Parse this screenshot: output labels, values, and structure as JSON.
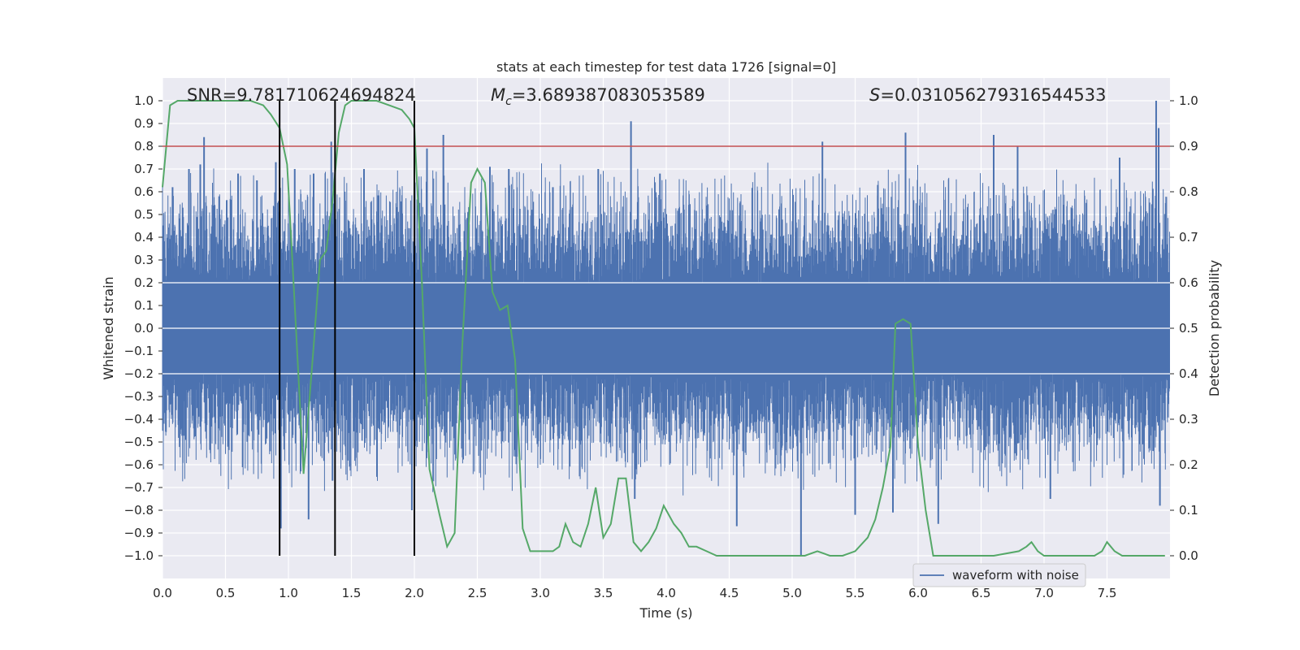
{
  "chart_data": {
    "type": "line",
    "title": "stats at each timestep for test data 1726 [signal=0]",
    "xlabel": "Time (s)",
    "ylabel": "Whitened strain",
    "y2label": "Detection probability",
    "xlim": [
      0.0,
      8.0
    ],
    "ylim": [
      -1.1,
      1.1
    ],
    "y2lim": [
      -0.05,
      1.05
    ],
    "grid": true,
    "background": "#eaeaf2",
    "x_ticks": [
      "0.0",
      "0.5",
      "1.0",
      "1.5",
      "2.0",
      "2.5",
      "3.0",
      "3.5",
      "4.0",
      "4.5",
      "5.0",
      "5.5",
      "6.0",
      "6.5",
      "7.0",
      "7.5"
    ],
    "y_ticks": [
      "1.0",
      "0.9",
      "0.8",
      "0.7",
      "0.6",
      "0.5",
      "0.4",
      "0.3",
      "0.2",
      "0.1",
      "0.0",
      "−0.1",
      "−0.2",
      "−0.3",
      "−0.4",
      "−0.5",
      "−0.6",
      "−0.7",
      "−0.8",
      "−0.9",
      "−1.0"
    ],
    "y2_ticks": [
      "1.0",
      "0.9",
      "0.8",
      "0.7",
      "0.6",
      "0.5",
      "0.4",
      "0.3",
      "0.2",
      "0.1",
      "0.0"
    ],
    "annotations": {
      "snr": "SNR=9.781710624694824",
      "mc_symbol": "M",
      "mc_sub": "c",
      "mc_value": "=3.689387083053589",
      "s_symbol": "S",
      "s_value": "=0.031056279316544533"
    },
    "threshold": {
      "value": 0.9,
      "axis": "right",
      "color": "#c44e52"
    },
    "vertical_lines": {
      "x": [
        0.93,
        1.37,
        2.0
      ],
      "y_from": -1.0,
      "y_to": 1.0,
      "color": "#000000"
    },
    "legend": {
      "position": "lower-right",
      "entries": [
        "waveform with noise"
      ]
    },
    "series": [
      {
        "name": "waveform with noise",
        "axis": "left",
        "color": "#4c72b0",
        "kind": "noise",
        "core_amplitude": 0.2,
        "typical_peak": 0.45,
        "spikes": [
          [
            0.08,
            0.62
          ],
          [
            0.21,
            0.7
          ],
          [
            0.3,
            0.72
          ],
          [
            0.33,
            0.84
          ],
          [
            0.45,
            0.58
          ],
          [
            0.6,
            0.68
          ],
          [
            0.75,
            0.65
          ],
          [
            0.9,
            0.73
          ],
          [
            0.94,
            -0.88
          ],
          [
            1.05,
            0.7
          ],
          [
            1.16,
            -0.84
          ],
          [
            1.2,
            0.68
          ],
          [
            1.34,
            0.82
          ],
          [
            1.35,
            -0.67
          ],
          [
            1.6,
            0.7
          ],
          [
            1.98,
            -0.8
          ],
          [
            2.1,
            0.79
          ],
          [
            2.23,
            0.85
          ],
          [
            2.6,
            0.71
          ],
          [
            2.75,
            0.7
          ],
          [
            3.1,
            0.62
          ],
          [
            3.46,
            0.7
          ],
          [
            3.72,
            0.91
          ],
          [
            3.75,
            -0.75
          ],
          [
            3.95,
            0.68
          ],
          [
            4.56,
            -0.87
          ],
          [
            5.07,
            -1.0
          ],
          [
            5.24,
            0.82
          ],
          [
            5.5,
            -0.82
          ],
          [
            5.68,
            0.63
          ],
          [
            5.8,
            -0.81
          ],
          [
            5.9,
            0.86
          ],
          [
            6.16,
            -0.86
          ],
          [
            6.6,
            0.85
          ],
          [
            6.79,
            0.8
          ],
          [
            7.05,
            -0.75
          ],
          [
            7.6,
            0.75
          ],
          [
            7.89,
            1.0
          ],
          [
            7.91,
            0.88
          ],
          [
            7.92,
            -0.78
          ]
        ]
      },
      {
        "name": "",
        "axis": "right",
        "color": "#55a868",
        "kind": "line",
        "x": [
          0.0,
          0.06,
          0.12,
          0.2,
          0.4,
          0.6,
          0.7,
          0.8,
          0.86,
          0.93,
          0.99,
          1.05,
          1.12,
          1.2,
          1.25,
          1.3,
          1.35,
          1.4,
          1.45,
          1.5,
          1.6,
          1.7,
          1.8,
          1.9,
          1.96,
          2.0,
          2.06,
          2.12,
          2.2,
          2.26,
          2.32,
          2.38,
          2.45,
          2.5,
          2.56,
          2.62,
          2.68,
          2.74,
          2.8,
          2.86,
          2.92,
          3.0,
          3.1,
          3.15,
          3.2,
          3.26,
          3.32,
          3.38,
          3.44,
          3.5,
          3.56,
          3.62,
          3.68,
          3.74,
          3.8,
          3.86,
          3.92,
          3.98,
          4.06,
          4.12,
          4.18,
          4.24,
          4.32,
          4.4,
          4.5,
          4.6,
          4.8,
          5.0,
          5.1,
          5.2,
          5.3,
          5.4,
          5.5,
          5.6,
          5.66,
          5.72,
          5.78,
          5.82,
          5.88,
          5.94,
          6.0,
          6.06,
          6.12,
          6.2,
          6.4,
          6.6,
          6.8,
          6.86,
          6.9,
          6.95,
          7.0,
          7.2,
          7.4,
          7.46,
          7.5,
          7.56,
          7.62,
          7.8,
          7.96
        ],
        "values": [
          0.81,
          0.99,
          1.0,
          1.0,
          1.0,
          1.0,
          1.0,
          0.99,
          0.97,
          0.94,
          0.86,
          0.55,
          0.18,
          0.46,
          0.65,
          0.67,
          0.78,
          0.93,
          0.99,
          1.0,
          1.0,
          1.0,
          0.99,
          0.98,
          0.96,
          0.94,
          0.6,
          0.19,
          0.09,
          0.02,
          0.05,
          0.46,
          0.82,
          0.85,
          0.82,
          0.58,
          0.54,
          0.55,
          0.43,
          0.06,
          0.01,
          0.01,
          0.01,
          0.02,
          0.07,
          0.03,
          0.02,
          0.07,
          0.15,
          0.04,
          0.07,
          0.17,
          0.17,
          0.03,
          0.01,
          0.03,
          0.06,
          0.11,
          0.07,
          0.05,
          0.02,
          0.02,
          0.01,
          0.0,
          0.0,
          0.0,
          0.0,
          0.0,
          0.0,
          0.01,
          0.0,
          0.0,
          0.01,
          0.04,
          0.08,
          0.15,
          0.24,
          0.51,
          0.52,
          0.51,
          0.24,
          0.1,
          0.0,
          0.0,
          0.0,
          0.0,
          0.01,
          0.02,
          0.03,
          0.01,
          0.0,
          0.0,
          0.0,
          0.01,
          0.03,
          0.01,
          0.0,
          0.0,
          0.0
        ]
      }
    ]
  }
}
